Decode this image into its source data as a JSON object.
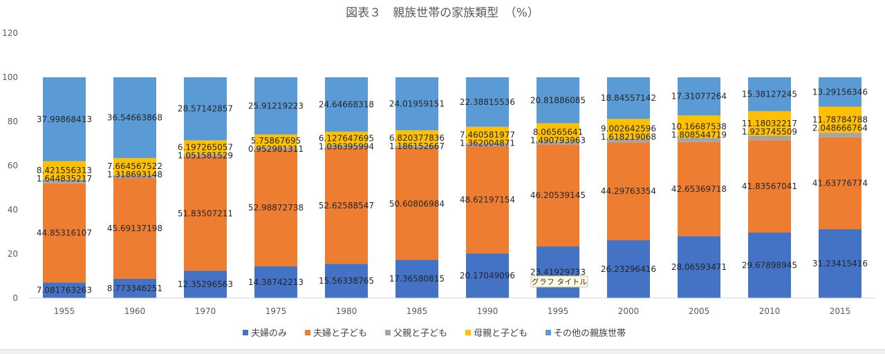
{
  "chart_data": {
    "type": "bar",
    "stacked": true,
    "title": "図表３　親族世帯の家族類型　（%）",
    "xlabel": "",
    "ylabel": "",
    "ylim": [
      0,
      120
    ],
    "yticks": [
      0,
      20,
      40,
      60,
      80,
      100,
      120
    ],
    "grid": false,
    "legend_position": "bottom",
    "categories": [
      "1955",
      "1960",
      "1970",
      "1975",
      "1980",
      "1985",
      "1990",
      "1995",
      "2000",
      "2005",
      "2010",
      "2015"
    ],
    "series": [
      {
        "name": "夫婦のみ",
        "color": "#4472C4",
        "values": [
          7.081763263,
          8.773346251,
          12.35296563,
          14.38742213,
          15.56338765,
          17.36580815,
          20.17049096,
          23.41929733,
          26.23296416,
          28.06593471,
          29.67898945,
          31.23415416
        ],
        "labels": [
          "7.081763263",
          "8.773346251",
          "12.35296563",
          "14.38742213",
          "15.56338765",
          "17.36580815",
          "20.17049096",
          "23.41929733",
          "26.23296416",
          "28.06593471",
          "29.67898945",
          "31.23415416"
        ]
      },
      {
        "name": "夫婦と子ども",
        "color": "#ED7D31",
        "values": [
          44.85316107,
          45.69137198,
          51.83507211,
          52.98872738,
          52.62588547,
          50.60806984,
          48.62197154,
          46.20539145,
          44.29763354,
          42.65369718,
          41.83567041,
          41.63776774
        ],
        "labels": [
          "44.85316107",
          "45.69137198",
          "51.83507211",
          "52.98872738",
          "52.62588547",
          "50.60806984",
          "48.62197154",
          "46.20539145",
          "44.29763354",
          "42.65369718",
          "41.83567041",
          "41.63776774"
        ]
      },
      {
        "name": "父親と子ども",
        "color": "#A5A5A5",
        "values": [
          1.644835217,
          1.318693148,
          1.051581529,
          0.952981311,
          1.036395994,
          1.186152667,
          1.362004871,
          1.490793963,
          1.618219068,
          1.808544719,
          1.923745509,
          2.048666764
        ],
        "labels": [
          "1.644835217",
          "1.318693148",
          "1.051581529",
          "0.952981311",
          "1.036395994",
          "1.186152667",
          "1.362004871",
          "1.490793963",
          "1.618219068",
          "1.808544719",
          "1.923745509",
          "2.048666764"
        ]
      },
      {
        "name": "母親と子ども",
        "color": "#FFC000",
        "values": [
          8.421556313,
          7.664567522,
          6.197265057,
          5.75867695,
          6.127647695,
          6.820377836,
          7.460581977,
          8.06565641,
          9.002642596,
          10.16687538,
          11.18032217,
          11.78784788
        ],
        "labels": [
          "8.421556313",
          "7.664567522",
          "6.197265057",
          "5.75867695",
          "6.127647695",
          "6.820377836",
          "7.460581977",
          "8.06565641",
          "9.002642596",
          "10.16687538",
          "11.18032217",
          "11.78784788"
        ]
      },
      {
        "name": "その他の親族世帯",
        "color": "#5B9BD5",
        "values": [
          37.99868413,
          36.54663868,
          28.57142857,
          25.91219223,
          24.64668318,
          24.01959151,
          22.38815536,
          20.81886085,
          18.84557142,
          17.31077264,
          15.38127245,
          13.29156346
        ],
        "labels": [
          "37.99868413",
          "36.54663868",
          "28.57142857",
          "25.91219223",
          "24.64668318",
          "24.01959151",
          "22.38815536",
          "20.81886085",
          "18.84557142",
          "17.31077264",
          "15.38127245",
          "13.29156346"
        ]
      }
    ]
  },
  "tooltip": {
    "text": "グラフ タイトル"
  }
}
